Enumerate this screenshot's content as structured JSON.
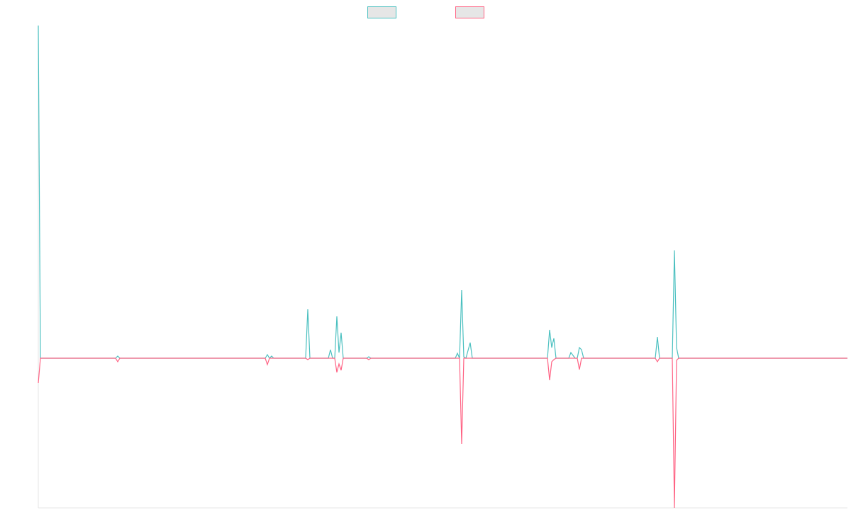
{
  "chart_data": {
    "type": "line",
    "x": [
      0,
      3,
      109,
      112,
      115,
      320,
      323,
      326,
      329,
      332,
      377,
      380,
      383,
      409,
      412,
      415,
      418,
      421,
      424,
      427,
      430,
      463,
      466,
      469,
      588,
      591,
      594,
      597,
      600,
      603,
      609,
      612,
      718,
      721,
      724,
      727,
      730,
      748,
      751,
      757,
      760,
      763,
      766,
      769,
      870,
      873,
      876,
      894,
      897,
      900,
      903,
      1141
    ],
    "series": [
      {
        "color": "#4bc0c0",
        "values": [
          469,
          0,
          0,
          3,
          0,
          0,
          5,
          0,
          3,
          0,
          0,
          69,
          0,
          0,
          12,
          0,
          0,
          59,
          8,
          36,
          0,
          0,
          2,
          0,
          0,
          7,
          0,
          96,
          2,
          0,
          22,
          0,
          0,
          40,
          15,
          28,
          0,
          0,
          8,
          0,
          0,
          15,
          12,
          0,
          0,
          30,
          0,
          0,
          152,
          15,
          0,
          0
        ]
      },
      {
        "color": "#ff6384",
        "values": [
          -35,
          0,
          0,
          -5,
          0,
          0,
          -9,
          0,
          0,
          0,
          0,
          -2,
          0,
          0,
          0,
          0,
          0,
          -20,
          -8,
          -17,
          0,
          0,
          -2,
          0,
          0,
          0,
          0,
          -121,
          0,
          0,
          0,
          0,
          0,
          -31,
          -5,
          -2,
          0,
          0,
          0,
          0,
          0,
          -16,
          0,
          0,
          0,
          -5,
          0,
          0,
          -211,
          -3,
          0,
          0
        ]
      }
    ],
    "xlim": [
      0,
      1141
    ],
    "ylim": [
      -211,
      469
    ],
    "legend": "top"
  }
}
